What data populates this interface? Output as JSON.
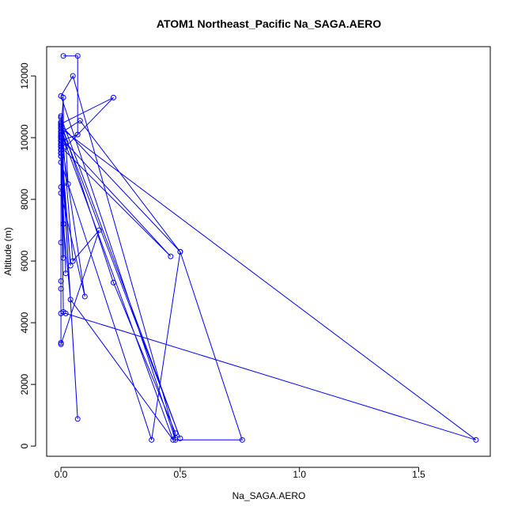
{
  "chart_data": {
    "type": "scatter",
    "title": "ATOM1 Northeast_Pacific Na_SAGA.AERO",
    "xlabel": "Na_SAGA.AERO",
    "ylabel": "Altitude (m)",
    "xlim": [
      -0.06,
      1.8
    ],
    "ylim": [
      -330,
      12950
    ],
    "xticks": [
      0.0,
      0.5,
      1.0,
      1.5
    ],
    "xtick_labels": [
      "0.0",
      "0.5",
      "1.0",
      "1.5"
    ],
    "yticks": [
      0,
      2000,
      4000,
      6000,
      8000,
      10000,
      12000
    ],
    "ytick_labels": [
      "0",
      "2000",
      "4000",
      "6000",
      "8000",
      "10000",
      "12000"
    ],
    "grid": false,
    "legend": "none",
    "color": "#0000ff",
    "series": [
      {
        "connected": true,
        "x": [
          0.01,
          0.07,
          0.07,
          0.0,
          0.0,
          0.0,
          0.38,
          0.5,
          0.76,
          0.48,
          0.0,
          0.05,
          0.48,
          0.48,
          0.22,
          0.0,
          0.0,
          0.0,
          0.02,
          0.03,
          0.0,
          0.0,
          0.1,
          0.0,
          0.01,
          0.0,
          0.0,
          0.02,
          0.22,
          0.0,
          0.0,
          0.0,
          0.0,
          0.0,
          0.0,
          0.0,
          0.07,
          0.0,
          0.0,
          0.0,
          0.0,
          0.0,
          0.47,
          0.04,
          0.01,
          0.0,
          0.0,
          0.0,
          0.0,
          0.0,
          0.0,
          0.0,
          0.0,
          0.08,
          0.5,
          0.0,
          0.5,
          0.0,
          0.0,
          0.0,
          0.0,
          0.16,
          0.05,
          0.0,
          0.0,
          0.0,
          0.0,
          0.04,
          0.0,
          0.0,
          0.0,
          0.0,
          0.0,
          0.0,
          0.0,
          0.0,
          0.0,
          0.0,
          0.46,
          0.0,
          0.0,
          0.0,
          0.0,
          0.0,
          0.0,
          0.0,
          0.0,
          0.0,
          0.01,
          0.01,
          0.0,
          0.0,
          0.02,
          0.0,
          0.0,
          0.0,
          0.0,
          0.0,
          0.0,
          0.0,
          0.0,
          0.0,
          0.0,
          0.0,
          0.0,
          1.74,
          0.02,
          0.0
        ],
        "y": [
          12650,
          12650,
          10100,
          9900,
          9600,
          9200,
          200,
          6300,
          200,
          200,
          11350,
          12000,
          270,
          420,
          5300,
          10500,
          10400,
          10300,
          9850,
          8500,
          8400,
          8200,
          4850,
          10050,
          4350,
          10300,
          10350,
          9700,
          11300,
          10450,
          10400,
          10500,
          10450,
          10200,
          10000,
          9800,
          880,
          9900,
          6600,
          5100,
          5350,
          10200,
          200,
          4750,
          7200,
          10000,
          10050,
          9950,
          10000,
          9900,
          10100,
          10200,
          10150,
          10550,
          6300,
          10400,
          250,
          10650,
          10000,
          3350,
          3300,
          7000,
          6000,
          10700,
          10300,
          10100,
          9700,
          5850,
          10000,
          10050,
          9900,
          9600,
          9700,
          9800,
          10100,
          10400,
          10200,
          10000,
          6150,
          9700,
          9600,
          9500,
          9400,
          9800,
          10000,
          9900,
          10100,
          10200,
          11300,
          6100,
          9900,
          9800,
          5600,
          9700,
          9750,
          9600,
          9500,
          9400,
          9500,
          9600,
          9800,
          10000,
          10100,
          10200,
          10300,
          200,
          4300,
          4300
        ]
      }
    ]
  }
}
